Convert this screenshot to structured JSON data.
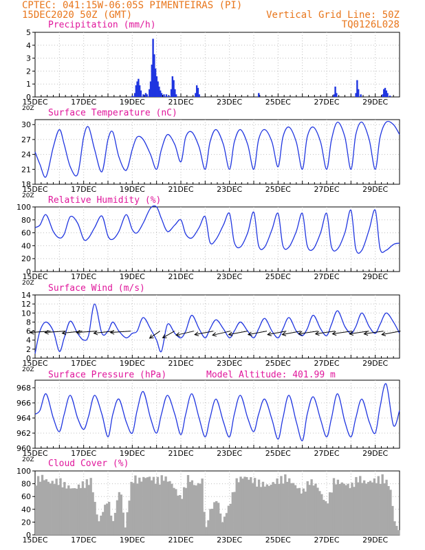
{
  "header": {
    "line1_left": "CPTEC:  041:15W-06:05S  PIMENTEIRAS (PI)",
    "line2_left": "15DEC2020 50Z (GMT)",
    "line1_right": "Vertical Grid Line: 50Z",
    "line2_right": "TQ0126L028",
    "color": "#e8751a"
  },
  "colors": {
    "title": "#e0169b",
    "line": "#1f35e0",
    "bar": "#1f35e0",
    "cloud": "#a9a9a9",
    "wind_arrow": "#000000",
    "grid": "#bdbdbd"
  },
  "x_axis": {
    "labels": [
      "15DEC",
      "17DEC",
      "19DEC",
      "21DEC",
      "23DEC",
      "25DEC",
      "27DEC",
      "29DEC"
    ],
    "day_span": 15,
    "overlap_label": "20Z"
  },
  "chart_data": [
    {
      "id": "precip",
      "type": "bar",
      "title": "Precipitation (mm/h)",
      "ylim": [
        0,
        5
      ],
      "yticks": [
        "0",
        "1",
        "2",
        "3",
        "4",
        "5"
      ],
      "x_days": [
        4.0,
        4.1,
        4.15,
        4.2,
        4.25,
        4.3,
        4.35,
        4.45,
        4.55,
        4.6,
        4.7,
        4.75,
        4.8,
        4.85,
        4.9,
        4.95,
        5.0,
        5.05,
        5.1,
        5.15,
        5.2,
        5.3,
        5.4,
        5.5,
        5.6,
        5.65,
        5.7,
        5.75,
        5.8,
        6.6,
        6.65,
        6.7,
        6.75,
        9.2,
        12.3,
        12.35,
        12.4,
        13.2,
        13.25,
        13.3,
        13.4,
        14.3,
        14.35,
        14.4,
        14.45,
        14.5,
        14.6
      ],
      "values": [
        0.1,
        0.3,
        0.9,
        1.2,
        1.4,
        0.9,
        0.5,
        0.2,
        0.3,
        0.2,
        0.6,
        1.2,
        2.5,
        4.5,
        3.3,
        2.2,
        1.6,
        1.2,
        0.8,
        0.5,
        0.3,
        0.2,
        0.2,
        0.1,
        0.6,
        1.6,
        1.3,
        0.6,
        0.2,
        0.3,
        0.9,
        0.7,
        0.2,
        0.3,
        0.2,
        0.8,
        0.3,
        0.3,
        1.3,
        0.6,
        0.2,
        0.2,
        0.6,
        0.7,
        0.5,
        0.3,
        0.1
      ]
    },
    {
      "id": "temp",
      "type": "line",
      "title": "Surface Temperature (nC)",
      "ylim": [
        18,
        31
      ],
      "yticks": [
        "18",
        "21",
        "24",
        "27",
        "30"
      ],
      "x_days": [
        0,
        0.2,
        0.45,
        0.75,
        1.0,
        1.2,
        1.45,
        1.75,
        2.0,
        2.2,
        2.45,
        2.75,
        3.0,
        3.2,
        3.45,
        3.75,
        4.0,
        4.2,
        4.45,
        4.75,
        5.0,
        5.2,
        5.45,
        5.75,
        6.0,
        6.2,
        6.45,
        6.75,
        7.0,
        7.2,
        7.45,
        7.75,
        8.0,
        8.2,
        8.45,
        8.75,
        9.0,
        9.2,
        9.45,
        9.75,
        10.0,
        10.2,
        10.45,
        10.75,
        11.0,
        11.2,
        11.45,
        11.75,
        12.0,
        12.2,
        12.45,
        12.75,
        13.0,
        13.2,
        13.45,
        13.75,
        14.0,
        14.2,
        14.45,
        14.75,
        15.0
      ],
      "values": [
        24.5,
        22.0,
        19.5,
        25.5,
        29.0,
        26.0,
        21.5,
        20.0,
        27.5,
        29.5,
        25.0,
        20.5,
        27.0,
        28.5,
        23.5,
        20.8,
        25.0,
        27.5,
        27.0,
        24.0,
        21.0,
        25.0,
        28.0,
        26.0,
        22.5,
        27.5,
        28.5,
        25.5,
        21.0,
        26.5,
        29.0,
        26.0,
        21.0,
        26.5,
        29.0,
        26.0,
        21.0,
        27.0,
        29.0,
        26.5,
        21.5,
        27.5,
        29.5,
        26.5,
        21.0,
        27.5,
        29.5,
        26.5,
        21.0,
        27.0,
        30.5,
        27.5,
        21.0,
        28.0,
        30.5,
        27.0,
        21.0,
        27.5,
        30.5,
        30.0,
        28.0
      ]
    },
    {
      "id": "rh",
      "type": "line",
      "title": "Relative Humidity (%)",
      "ylim": [
        0,
        100
      ],
      "yticks": [
        "0",
        "20",
        "40",
        "60",
        "80",
        "100"
      ],
      "x_days": [
        0,
        0.2,
        0.45,
        0.75,
        1.0,
        1.2,
        1.45,
        1.75,
        2.0,
        2.2,
        2.45,
        2.75,
        3.0,
        3.2,
        3.45,
        3.75,
        4.0,
        4.2,
        4.45,
        4.75,
        5.0,
        5.2,
        5.45,
        5.75,
        6.0,
        6.2,
        6.45,
        6.75,
        7.0,
        7.2,
        7.45,
        7.75,
        8.0,
        8.2,
        8.45,
        8.75,
        9.0,
        9.2,
        9.45,
        9.75,
        10.0,
        10.2,
        10.45,
        10.75,
        11.0,
        11.2,
        11.45,
        11.75,
        12.0,
        12.2,
        12.45,
        12.75,
        13.0,
        13.2,
        13.45,
        13.75,
        14.0,
        14.2,
        14.45,
        14.75,
        15.0
      ],
      "values": [
        68,
        72,
        88,
        62,
        52,
        58,
        85,
        75,
        50,
        52,
        68,
        86,
        55,
        50,
        62,
        88,
        65,
        60,
        75,
        98,
        100,
        82,
        62,
        72,
        80,
        58,
        52,
        68,
        85,
        45,
        50,
        72,
        90,
        45,
        38,
        60,
        92,
        40,
        38,
        65,
        90,
        40,
        38,
        62,
        90,
        40,
        35,
        60,
        90,
        38,
        35,
        60,
        95,
        35,
        33,
        65,
        95,
        35,
        33,
        42,
        44
      ]
    },
    {
      "id": "wind",
      "type": "line",
      "title": "Surface Wind (m/s)",
      "ylim": [
        0,
        14
      ],
      "yticks": [
        "0",
        "2",
        "4",
        "6",
        "8",
        "10",
        "12",
        "14"
      ],
      "x_days": [
        0,
        0.2,
        0.45,
        0.75,
        1.0,
        1.2,
        1.45,
        1.75,
        2.0,
        2.2,
        2.45,
        2.75,
        3.0,
        3.2,
        3.45,
        3.75,
        4.0,
        4.2,
        4.45,
        4.75,
        5.0,
        5.2,
        5.45,
        5.75,
        6.0,
        6.2,
        6.45,
        6.75,
        7.0,
        7.2,
        7.45,
        7.75,
        8.0,
        8.2,
        8.45,
        8.75,
        9.0,
        9.2,
        9.45,
        9.75,
        10.0,
        10.2,
        10.45,
        10.75,
        11.0,
        11.2,
        11.45,
        11.75,
        12.0,
        12.2,
        12.45,
        12.75,
        13.0,
        13.2,
        13.45,
        13.75,
        14.0,
        14.2,
        14.45,
        14.75,
        15.0
      ],
      "values": [
        1.0,
        6.0,
        8.0,
        6.0,
        1.5,
        4.5,
        8.2,
        5.5,
        4.0,
        5.0,
        12.0,
        5.5,
        6.0,
        8.0,
        6.0,
        4.5,
        5.5,
        6.0,
        9.0,
        6.5,
        4.0,
        1.5,
        7.5,
        5.5,
        4.5,
        6.0,
        9.5,
        6.5,
        4.5,
        6.5,
        8.5,
        6.5,
        4.5,
        6.0,
        8.0,
        6.0,
        4.5,
        6.5,
        8.8,
        6.0,
        4.5,
        6.5,
        9.0,
        6.0,
        5.0,
        6.5,
        9.5,
        6.5,
        5.0,
        7.5,
        10.5,
        7.0,
        5.5,
        7.0,
        10.0,
        7.0,
        5.5,
        7.5,
        10.0,
        8.0,
        5.5
      ],
      "arrows_days": [
        0.3,
        0.9,
        1.6,
        2.2,
        2.9,
        3.6,
        4.8,
        5.4,
        6.2,
        7.0,
        7.7,
        8.4,
        9.2,
        10.0,
        10.6,
        11.3,
        12.0,
        12.7,
        13.4,
        14.0,
        14.7
      ],
      "arrow_dir_deg": [
        10,
        10,
        15,
        10,
        15,
        10,
        60,
        55,
        30,
        25,
        30,
        25,
        25,
        25,
        25,
        20,
        20,
        20,
        20,
        20,
        25
      ]
    },
    {
      "id": "pres",
      "type": "line",
      "title": "Surface Pressure (hPa)",
      "subtitle": "Model Altitude: 401.99 m",
      "ylim": [
        960,
        969
      ],
      "yticks": [
        "960",
        "962",
        "964",
        "966",
        "968"
      ],
      "x_days": [
        0,
        0.2,
        0.45,
        0.75,
        1.0,
        1.2,
        1.45,
        1.75,
        2.0,
        2.2,
        2.45,
        2.75,
        3.0,
        3.2,
        3.45,
        3.75,
        4.0,
        4.2,
        4.45,
        4.75,
        5.0,
        5.2,
        5.45,
        5.75,
        6.0,
        6.2,
        6.45,
        6.75,
        7.0,
        7.2,
        7.45,
        7.75,
        8.0,
        8.2,
        8.45,
        8.75,
        9.0,
        9.2,
        9.45,
        9.75,
        10.0,
        10.2,
        10.45,
        10.75,
        11.0,
        11.2,
        11.45,
        11.75,
        12.0,
        12.2,
        12.45,
        12.75,
        13.0,
        13.2,
        13.45,
        13.75,
        14.0,
        14.2,
        14.45,
        14.75,
        15.0
      ],
      "values": [
        964.5,
        965.0,
        967.2,
        964.0,
        962.2,
        964.5,
        967.0,
        964.0,
        962.5,
        964.2,
        967.0,
        964.5,
        961.5,
        964.5,
        966.5,
        963.5,
        962.0,
        965.0,
        967.5,
        964.0,
        962.0,
        964.5,
        967.0,
        964.5,
        961.8,
        964.5,
        967.2,
        964.0,
        961.5,
        964.0,
        966.5,
        963.5,
        961.5,
        964.5,
        967.0,
        964.0,
        962.2,
        964.5,
        966.5,
        963.8,
        961.2,
        964.0,
        967.0,
        963.5,
        961.0,
        964.5,
        966.8,
        963.8,
        961.5,
        964.0,
        967.2,
        963.5,
        961.5,
        964.0,
        966.5,
        963.5,
        962.0,
        965.5,
        968.5,
        963.0,
        965.0
      ]
    },
    {
      "id": "cloud",
      "type": "area",
      "title": "Cloud Cover (%)",
      "ylim": [
        0,
        100
      ],
      "yticks": [
        "0",
        "20",
        "40",
        "60",
        "80",
        "100"
      ],
      "x_days": [
        0,
        0.3,
        0.6,
        1.0,
        1.3,
        1.6,
        2.0,
        2.3,
        2.6,
        3.0,
        3.2,
        3.5,
        3.7,
        4.0,
        4.3,
        4.6,
        5.0,
        5.3,
        5.6,
        6.0,
        6.3,
        6.6,
        6.9,
        7.0,
        7.2,
        7.5,
        7.7,
        8.0,
        8.3,
        8.6,
        9.0,
        9.3,
        9.6,
        10.0,
        10.3,
        10.6,
        11.0,
        11.3,
        11.6,
        12.0,
        12.3,
        12.6,
        13.0,
        13.3,
        13.6,
        14.0,
        14.3,
        14.6,
        14.8,
        15.0
      ],
      "values": [
        90,
        95,
        85,
        90,
        80,
        75,
        85,
        90,
        20,
        60,
        20,
        80,
        10,
        95,
        90,
        95,
        90,
        95,
        85,
        60,
        95,
        80,
        90,
        5,
        40,
        60,
        20,
        50,
        90,
        95,
        90,
        85,
        80,
        90,
        95,
        85,
        70,
        90,
        80,
        50,
        90,
        85,
        80,
        95,
        85,
        90,
        95,
        80,
        20,
        5
      ]
    }
  ]
}
